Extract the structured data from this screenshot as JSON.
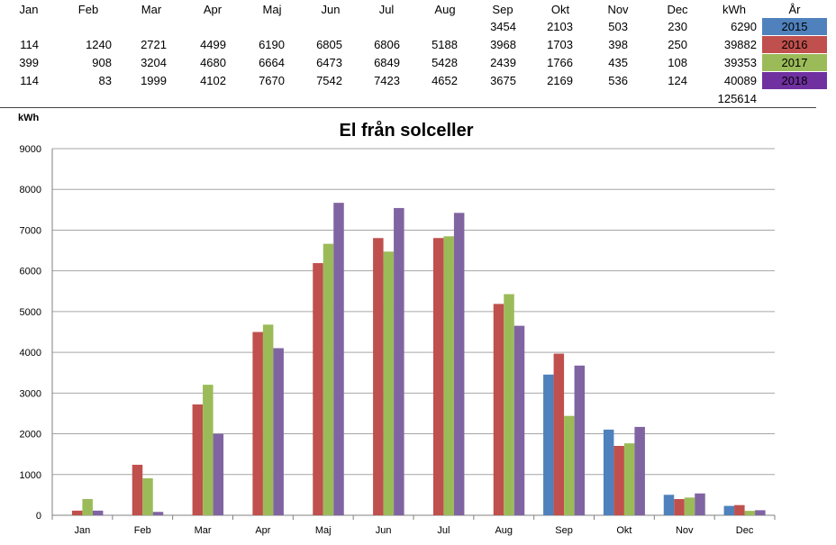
{
  "table": {
    "headers": [
      "Jan",
      "Feb",
      "Mar",
      "Apr",
      "Maj",
      "Jun",
      "Jul",
      "Aug",
      "Sep",
      "Okt",
      "Nov",
      "Dec",
      "kWh",
      "År"
    ],
    "rows": [
      {
        "values": [
          "",
          "",
          "",
          "",
          "",
          "",
          "",
          "",
          "3454",
          "2103",
          "503",
          "230"
        ],
        "total": "6290",
        "year": "2015",
        "color": "#4f81bd"
      },
      {
        "values": [
          "114",
          "1240",
          "2721",
          "4499",
          "6190",
          "6805",
          "6806",
          "5188",
          "3968",
          "1703",
          "398",
          "250"
        ],
        "total": "39882",
        "year": "2016",
        "color": "#c0504d"
      },
      {
        "values": [
          "399",
          "908",
          "3204",
          "4680",
          "6664",
          "6473",
          "6849",
          "5428",
          "2439",
          "1766",
          "435",
          "108"
        ],
        "total": "39353",
        "year": "2017",
        "color": "#9bbb59"
      },
      {
        "values": [
          "114",
          "83",
          "1999",
          "4102",
          "7670",
          "7542",
          "7423",
          "4652",
          "3675",
          "2169",
          "536",
          "124"
        ],
        "total": "40089",
        "year": "2018",
        "color": "#7030a0"
      }
    ],
    "grand_total": "125614"
  },
  "chart_data": {
    "type": "bar",
    "title": "El från solceller",
    "ylabel": "kWh",
    "xlabel": "",
    "ylim": [
      0,
      9000
    ],
    "yticks": [
      "0",
      "1000",
      "2000",
      "3000",
      "4000",
      "5000",
      "6000",
      "7000",
      "8000",
      "9000"
    ],
    "grid": true,
    "categories": [
      "Jan",
      "Feb",
      "Mar",
      "Apr",
      "Maj",
      "Jun",
      "Jul",
      "Aug",
      "Sep",
      "Okt",
      "Nov",
      "Dec"
    ],
    "series": [
      {
        "name": "2015",
        "color": "#4f81bd",
        "values": [
          0,
          0,
          0,
          0,
          0,
          0,
          0,
          0,
          3454,
          2103,
          503,
          230
        ]
      },
      {
        "name": "2016",
        "color": "#c0504d",
        "values": [
          114,
          1240,
          2721,
          4499,
          6190,
          6805,
          6806,
          5188,
          3968,
          1703,
          398,
          250
        ]
      },
      {
        "name": "2017",
        "color": "#9bbb59",
        "values": [
          399,
          908,
          3204,
          4680,
          6664,
          6473,
          6849,
          5428,
          2439,
          1766,
          435,
          108
        ]
      },
      {
        "name": "2018",
        "color": "#8064a2",
        "values": [
          114,
          83,
          1999,
          4102,
          7670,
          7542,
          7423,
          4652,
          3675,
          2169,
          536,
          124
        ]
      }
    ]
  }
}
